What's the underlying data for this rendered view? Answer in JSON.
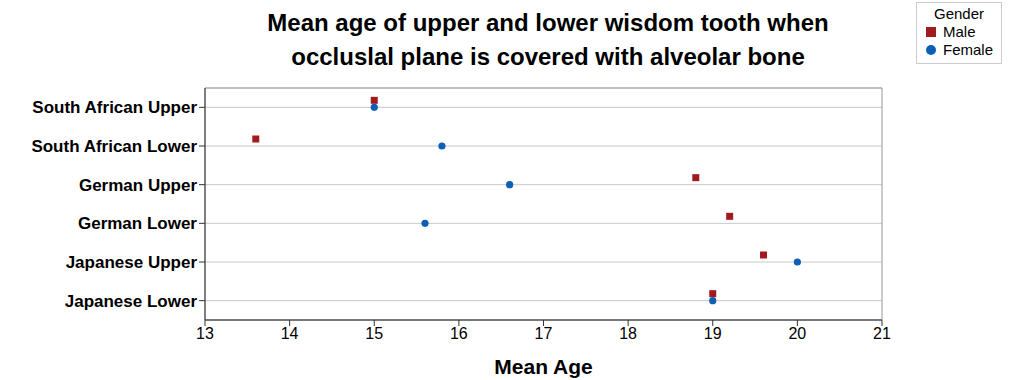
{
  "chart_data": {
    "type": "scatter",
    "title": "Mean age of upper and lower wisdom tooth when\noccluslal plane is covered with alveolar bone",
    "xlabel": "Mean Age",
    "orientation": "horizontal",
    "categories": [
      "South African Upper",
      "South African Lower",
      "German Upper",
      "German Lower",
      "Japanese Upper",
      "Japanese Lower"
    ],
    "series": [
      {
        "name": "Male",
        "color": "#a31a1e",
        "marker": "square",
        "values": [
          15,
          13.6,
          18.8,
          19.2,
          19.6,
          19
        ]
      },
      {
        "name": "Female",
        "color": "#0b5fb4",
        "marker": "circle",
        "values": [
          15,
          15.8,
          16.6,
          15.6,
          20,
          19
        ]
      }
    ],
    "xlim": [
      13,
      21
    ],
    "xticks": [
      13,
      14,
      15,
      16,
      17,
      18,
      19,
      20,
      21
    ],
    "grid": true,
    "legend": "top right",
    "legend_title": "Gender"
  }
}
